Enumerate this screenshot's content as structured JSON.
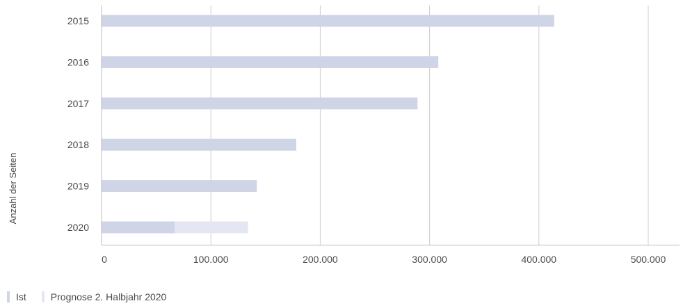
{
  "chart_data": {
    "type": "bar",
    "orientation": "horizontal",
    "stacked": true,
    "categories": [
      "2015",
      "2016",
      "2017",
      "2018",
      "2019",
      "2020"
    ],
    "series": [
      {
        "name": "Ist",
        "color": "#cfd4e6",
        "values": [
          414000,
          308000,
          289000,
          178000,
          142000,
          67000
        ]
      },
      {
        "name": "Prognose 2. Halbjahr 2020",
        "color": "#e4e7f1",
        "values": [
          0,
          0,
          0,
          0,
          0,
          67000
        ]
      }
    ],
    "title": "",
    "xlabel": "",
    "ylabel": "Anzahl der Seiten",
    "xlim": [
      0,
      500000
    ],
    "xticks": [
      0,
      100000,
      200000,
      300000,
      400000,
      500000
    ],
    "xtick_labels": [
      "0",
      "100.000",
      "200.000",
      "300.000",
      "400.000",
      "500.000"
    ],
    "grid": true,
    "legend_position": "bottom-left",
    "colors": {
      "grid": "#cccccc",
      "axis": "#bbbbbb",
      "text": "#4a4a4a"
    }
  }
}
